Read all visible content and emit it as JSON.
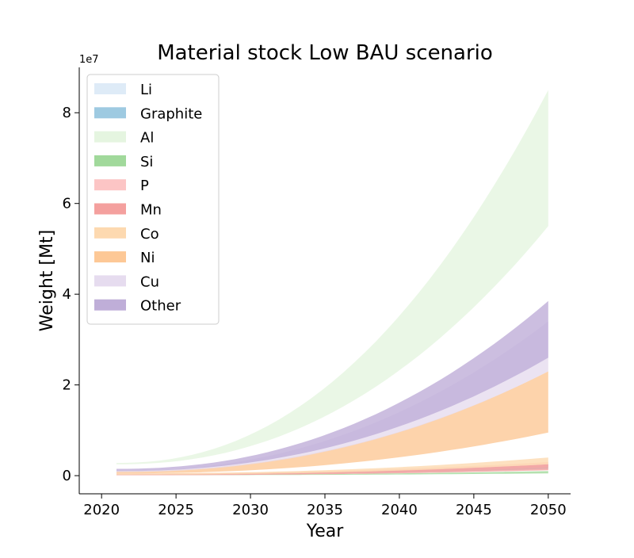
{
  "chart_data": {
    "type": "area",
    "title": "Material stock Low BAU scenario",
    "xlabel": "Year",
    "ylabel": "Weight [Mt]",
    "y_offset_label": "1e7",
    "xlim": [
      2018.5,
      2051.5
    ],
    "ylim": [
      -0.4,
      9.0
    ],
    "xticks": [
      2020,
      2025,
      2030,
      2035,
      2040,
      2045,
      2050
    ],
    "yticks": [
      0,
      2,
      4,
      6,
      8
    ],
    "legend_position": "upper-left",
    "grid": false,
    "bands": [
      {
        "name": "Li",
        "color": "#deebf7",
        "x": [
          2021,
          2050
        ],
        "lower": [
          0.02,
          0.18
        ],
        "upper": [
          0.03,
          0.22
        ]
      },
      {
        "name": "Graphite",
        "color": "#9ecae1",
        "x": [
          2021,
          2050
        ],
        "lower": [
          0.02,
          0.15
        ],
        "upper": [
          0.04,
          0.25
        ]
      },
      {
        "name": "Al",
        "color": "#e5f5e0",
        "x": [
          2021,
          2050
        ],
        "lower": [
          0.25,
          5.5
        ],
        "upper": [
          0.28,
          8.5
        ]
      },
      {
        "name": "Si",
        "color": "#a1d99b",
        "x": [
          2021,
          2050
        ],
        "lower": [
          0.01,
          0.05
        ],
        "upper": [
          0.02,
          0.1
        ]
      },
      {
        "name": "P",
        "color": "#fcc5c5",
        "x": [
          2021,
          2050
        ],
        "lower": [
          0.01,
          0.18
        ],
        "upper": [
          0.05,
          0.3
        ]
      },
      {
        "name": "Mn",
        "color": "#f4a09e",
        "x": [
          2021,
          2050
        ],
        "lower": [
          0.01,
          0.12
        ],
        "upper": [
          0.03,
          0.25
        ]
      },
      {
        "name": "Co",
        "color": "#fdd9b0",
        "x": [
          2021,
          2050
        ],
        "lower": [
          0.02,
          0.25
        ],
        "upper": [
          0.05,
          0.4
        ]
      },
      {
        "name": "Ni",
        "color": "#fdc896",
        "x": [
          2021,
          2050
        ],
        "lower": [
          0.05,
          0.95
        ],
        "upper": [
          0.1,
          2.3
        ]
      },
      {
        "name": "Cu",
        "color": "#e6dcef",
        "x": [
          2021,
          2050
        ],
        "lower": [
          0.08,
          2.3
        ],
        "upper": [
          0.1,
          3.4
        ]
      },
      {
        "name": "Other",
        "color": "#bfaed8",
        "x": [
          2021,
          2050
        ],
        "lower": [
          0.1,
          2.6
        ],
        "upper": [
          0.15,
          3.85
        ]
      }
    ]
  }
}
